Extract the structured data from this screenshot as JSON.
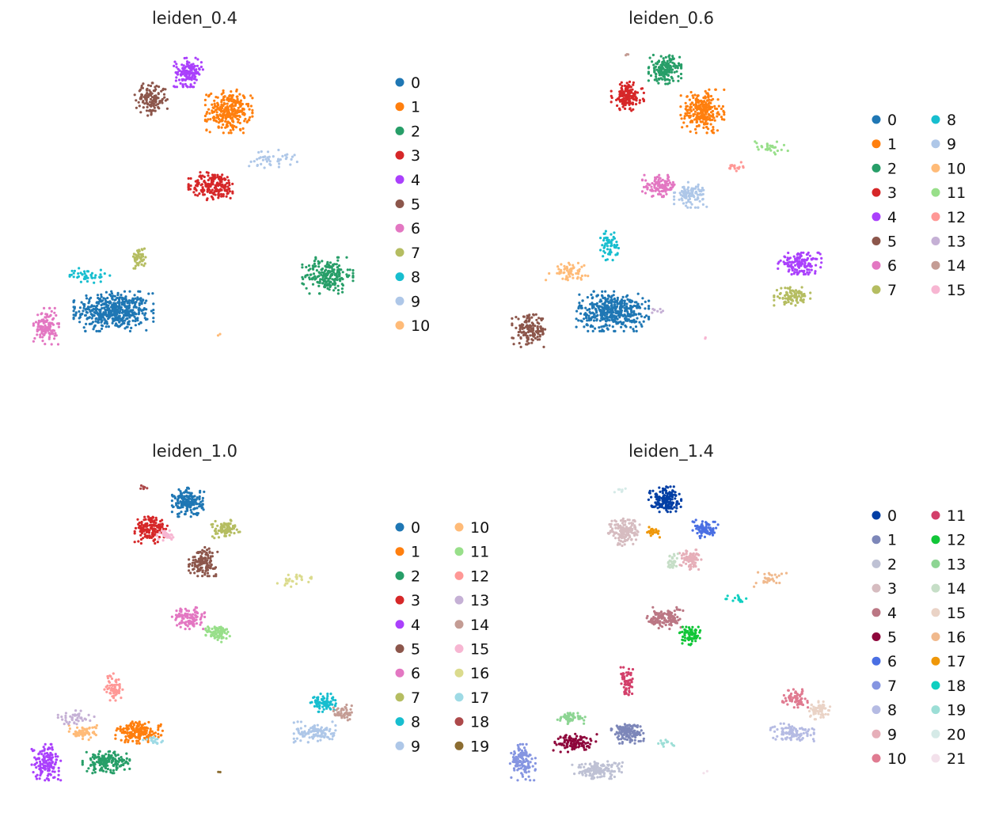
{
  "chart_data": [
    {
      "type": "scatter",
      "title": "leiden_0.4",
      "legend": {
        "placement": "right",
        "columns": 1,
        "entries": [
          {
            "label": "0",
            "color": "#1f77b4"
          },
          {
            "label": "1",
            "color": "#ff7f0e"
          },
          {
            "label": "2",
            "color": "#279e68"
          },
          {
            "label": "3",
            "color": "#d62728"
          },
          {
            "label": "4",
            "color": "#aa40fc"
          },
          {
            "label": "5",
            "color": "#8c564b"
          },
          {
            "label": "6",
            "color": "#e377c2"
          },
          {
            "label": "7",
            "color": "#b5bd61"
          },
          {
            "label": "8",
            "color": "#17becf"
          },
          {
            "label": "9",
            "color": "#aec7e8"
          },
          {
            "label": "10",
            "color": "#ffbb78"
          }
        ]
      },
      "clusters": [
        {
          "label": "0",
          "cx": -0.55,
          "cy": -0.72,
          "rx": 0.22,
          "ry": 0.11,
          "n": 900
        },
        {
          "label": "1",
          "cx": 0.22,
          "cy": 0.62,
          "rx": 0.13,
          "ry": 0.12,
          "n": 500
        },
        {
          "label": "2",
          "cx": 0.88,
          "cy": -0.48,
          "rx": 0.14,
          "ry": 0.1,
          "n": 380
        },
        {
          "label": "3",
          "cx": 0.12,
          "cy": 0.12,
          "rx": 0.14,
          "ry": 0.08,
          "n": 350
        },
        {
          "label": "4",
          "cx": -0.05,
          "cy": 0.88,
          "rx": 0.08,
          "ry": 0.08,
          "n": 260
        },
        {
          "label": "5",
          "cx": -0.3,
          "cy": 0.7,
          "rx": 0.09,
          "ry": 0.09,
          "n": 250
        },
        {
          "label": "6",
          "cx": -1.0,
          "cy": -0.82,
          "rx": 0.07,
          "ry": 0.1,
          "n": 220
        },
        {
          "label": "7",
          "cx": -0.38,
          "cy": -0.36,
          "rx": 0.04,
          "ry": 0.06,
          "n": 90
        },
        {
          "label": "8",
          "cx": -0.72,
          "cy": -0.48,
          "rx": 0.12,
          "ry": 0.04,
          "n": 80
        },
        {
          "label": "9",
          "cx": 0.5,
          "cy": 0.3,
          "rx": 0.15,
          "ry": 0.05,
          "n": 80
        },
        {
          "label": "10",
          "cx": 0.16,
          "cy": -0.88,
          "rx": 0.01,
          "ry": 0.01,
          "n": 4
        }
      ]
    },
    {
      "type": "scatter",
      "title": "leiden_0.6",
      "legend": {
        "placement": "right",
        "columns": 2,
        "entries": [
          {
            "label": "0",
            "color": "#1f77b4"
          },
          {
            "label": "1",
            "color": "#ff7f0e"
          },
          {
            "label": "2",
            "color": "#279e68"
          },
          {
            "label": "3",
            "color": "#d62728"
          },
          {
            "label": "4",
            "color": "#aa40fc"
          },
          {
            "label": "5",
            "color": "#8c564b"
          },
          {
            "label": "6",
            "color": "#e377c2"
          },
          {
            "label": "7",
            "color": "#b5bd61"
          },
          {
            "label": "8",
            "color": "#17becf"
          },
          {
            "label": "9",
            "color": "#aec7e8"
          },
          {
            "label": "10",
            "color": "#ffbb78"
          },
          {
            "label": "11",
            "color": "#98df8a"
          },
          {
            "label": "12",
            "color": "#ff9896"
          },
          {
            "label": "13",
            "color": "#c5b0d5"
          },
          {
            "label": "14",
            "color": "#c49c94"
          },
          {
            "label": "15",
            "color": "#f7b6d2"
          }
        ]
      },
      "clusters": [
        {
          "label": "0",
          "cx": -0.4,
          "cy": -0.72,
          "rx": 0.2,
          "ry": 0.11,
          "n": 800
        },
        {
          "label": "1",
          "cx": 0.2,
          "cy": 0.62,
          "rx": 0.12,
          "ry": 0.12,
          "n": 480
        },
        {
          "label": "2",
          "cx": -0.05,
          "cy": 0.9,
          "rx": 0.09,
          "ry": 0.08,
          "n": 300
        },
        {
          "label": "3",
          "cx": -0.3,
          "cy": 0.72,
          "rx": 0.09,
          "ry": 0.08,
          "n": 280
        },
        {
          "label": "4",
          "cx": 0.85,
          "cy": -0.4,
          "rx": 0.12,
          "ry": 0.06,
          "n": 260
        },
        {
          "label": "5",
          "cx": -0.95,
          "cy": -0.85,
          "rx": 0.1,
          "ry": 0.09,
          "n": 260
        },
        {
          "label": "6",
          "cx": -0.08,
          "cy": 0.12,
          "rx": 0.1,
          "ry": 0.06,
          "n": 200
        },
        {
          "label": "7",
          "cx": 0.8,
          "cy": -0.62,
          "rx": 0.1,
          "ry": 0.05,
          "n": 170
        },
        {
          "label": "8",
          "cx": -0.42,
          "cy": -0.28,
          "rx": 0.05,
          "ry": 0.08,
          "n": 110
        },
        {
          "label": "9",
          "cx": 0.12,
          "cy": 0.06,
          "rx": 0.09,
          "ry": 0.07,
          "n": 180
        },
        {
          "label": "10",
          "cx": -0.7,
          "cy": -0.45,
          "rx": 0.12,
          "ry": 0.05,
          "n": 110
        },
        {
          "label": "11",
          "cx": 0.65,
          "cy": 0.38,
          "rx": 0.1,
          "ry": 0.04,
          "n": 50
        },
        {
          "label": "12",
          "cx": 0.42,
          "cy": 0.25,
          "rx": 0.05,
          "ry": 0.03,
          "n": 30
        },
        {
          "label": "13",
          "cx": -0.1,
          "cy": -0.72,
          "rx": 0.03,
          "ry": 0.02,
          "n": 15
        },
        {
          "label": "14",
          "cx": -0.3,
          "cy": 1.0,
          "rx": 0.01,
          "ry": 0.01,
          "n": 6
        },
        {
          "label": "15",
          "cx": 0.22,
          "cy": -0.9,
          "rx": 0.01,
          "ry": 0.01,
          "n": 3
        }
      ]
    },
    {
      "type": "scatter",
      "title": "leiden_1.0",
      "legend": {
        "placement": "right",
        "columns": 2,
        "entries": [
          {
            "label": "0",
            "color": "#1f77b4"
          },
          {
            "label": "1",
            "color": "#ff7f0e"
          },
          {
            "label": "2",
            "color": "#279e68"
          },
          {
            "label": "3",
            "color": "#d62728"
          },
          {
            "label": "4",
            "color": "#aa40fc"
          },
          {
            "label": "5",
            "color": "#8c564b"
          },
          {
            "label": "6",
            "color": "#e377c2"
          },
          {
            "label": "7",
            "color": "#b5bd61"
          },
          {
            "label": "8",
            "color": "#17becf"
          },
          {
            "label": "9",
            "color": "#aec7e8"
          },
          {
            "label": "10",
            "color": "#ffbb78"
          },
          {
            "label": "11",
            "color": "#98df8a"
          },
          {
            "label": "12",
            "color": "#ff9896"
          },
          {
            "label": "13",
            "color": "#c5b0d5"
          },
          {
            "label": "14",
            "color": "#c49c94"
          },
          {
            "label": "15",
            "color": "#f7b6d2"
          },
          {
            "label": "16",
            "color": "#dbdb8d"
          },
          {
            "label": "17",
            "color": "#9edae5"
          },
          {
            "label": "18",
            "color": "#ad494a"
          },
          {
            "label": "19",
            "color": "#8c6d31"
          }
        ]
      },
      "clusters": [
        {
          "label": "0",
          "cx": -0.05,
          "cy": 0.9,
          "rx": 0.09,
          "ry": 0.08,
          "n": 320
        },
        {
          "label": "1",
          "cx": -0.38,
          "cy": -0.65,
          "rx": 0.13,
          "ry": 0.06,
          "n": 320
        },
        {
          "label": "2",
          "cx": -0.6,
          "cy": -0.85,
          "rx": 0.13,
          "ry": 0.06,
          "n": 300
        },
        {
          "label": "3",
          "cx": -0.3,
          "cy": 0.72,
          "rx": 0.09,
          "ry": 0.08,
          "n": 280
        },
        {
          "label": "4",
          "cx": -1.0,
          "cy": -0.85,
          "rx": 0.08,
          "ry": 0.1,
          "n": 260
        },
        {
          "label": "5",
          "cx": 0.05,
          "cy": 0.5,
          "rx": 0.08,
          "ry": 0.08,
          "n": 250
        },
        {
          "label": "6",
          "cx": -0.05,
          "cy": 0.12,
          "rx": 0.09,
          "ry": 0.06,
          "n": 200
        },
        {
          "label": "7",
          "cx": 0.2,
          "cy": 0.72,
          "rx": 0.08,
          "ry": 0.05,
          "n": 160
        },
        {
          "label": "8",
          "cx": 0.85,
          "cy": -0.45,
          "rx": 0.07,
          "ry": 0.05,
          "n": 140
        },
        {
          "label": "9",
          "cx": 0.8,
          "cy": -0.65,
          "rx": 0.12,
          "ry": 0.06,
          "n": 200
        },
        {
          "label": "10",
          "cx": -0.75,
          "cy": -0.65,
          "rx": 0.08,
          "ry": 0.04,
          "n": 120
        },
        {
          "label": "11",
          "cx": 0.15,
          "cy": 0.02,
          "rx": 0.07,
          "ry": 0.05,
          "n": 150
        },
        {
          "label": "12",
          "cx": -0.55,
          "cy": -0.35,
          "rx": 0.05,
          "ry": 0.08,
          "n": 120
        },
        {
          "label": "13",
          "cx": -0.8,
          "cy": -0.55,
          "rx": 0.1,
          "ry": 0.04,
          "n": 80
        },
        {
          "label": "14",
          "cx": 0.98,
          "cy": -0.52,
          "rx": 0.05,
          "ry": 0.05,
          "n": 80
        },
        {
          "label": "15",
          "cx": -0.2,
          "cy": 0.68,
          "rx": 0.05,
          "ry": 0.03,
          "n": 60
        },
        {
          "label": "16",
          "cx": 0.65,
          "cy": 0.38,
          "rx": 0.1,
          "ry": 0.04,
          "n": 50
        },
        {
          "label": "17",
          "cx": -0.28,
          "cy": -0.7,
          "rx": 0.06,
          "ry": 0.02,
          "n": 30
        },
        {
          "label": "18",
          "cx": -0.35,
          "cy": 1.0,
          "rx": 0.02,
          "ry": 0.01,
          "n": 12
        },
        {
          "label": "19",
          "cx": 0.15,
          "cy": -0.92,
          "rx": 0.01,
          "ry": 0.01,
          "n": 4
        }
      ]
    },
    {
      "type": "scatter",
      "title": "leiden_1.4",
      "legend": {
        "placement": "right",
        "columns": 2,
        "entries": [
          {
            "label": "0",
            "color": "#023fa5"
          },
          {
            "label": "1",
            "color": "#7d87b9"
          },
          {
            "label": "2",
            "color": "#bec1d4"
          },
          {
            "label": "3",
            "color": "#d6bcc0"
          },
          {
            "label": "4",
            "color": "#bb7784"
          },
          {
            "label": "5",
            "color": "#8e063b"
          },
          {
            "label": "6",
            "color": "#4a6fe3"
          },
          {
            "label": "7",
            "color": "#8595e1"
          },
          {
            "label": "8",
            "color": "#b5bbe3"
          },
          {
            "label": "9",
            "color": "#e6afb9"
          },
          {
            "label": "10",
            "color": "#e07b91"
          },
          {
            "label": "11",
            "color": "#d33f6a"
          },
          {
            "label": "12",
            "color": "#11c638"
          },
          {
            "label": "13",
            "color": "#8dd593"
          },
          {
            "label": "14",
            "color": "#c6dec7"
          },
          {
            "label": "15",
            "color": "#ead3c6"
          },
          {
            "label": "16",
            "color": "#f0b98d"
          },
          {
            "label": "17",
            "color": "#ef9708"
          },
          {
            "label": "18",
            "color": "#0fcfc0"
          },
          {
            "label": "19",
            "color": "#9cded6"
          },
          {
            "label": "20",
            "color": "#d5eae7"
          },
          {
            "label": "21",
            "color": "#f3e1eb"
          }
        ]
      },
      "clusters": [
        {
          "label": "0",
          "cx": -0.05,
          "cy": 0.92,
          "rx": 0.09,
          "ry": 0.07,
          "n": 300
        },
        {
          "label": "1",
          "cx": -0.3,
          "cy": -0.65,
          "rx": 0.09,
          "ry": 0.06,
          "n": 250
        },
        {
          "label": "2",
          "cx": -0.5,
          "cy": -0.9,
          "rx": 0.14,
          "ry": 0.05,
          "n": 260
        },
        {
          "label": "3",
          "cx": -0.32,
          "cy": 0.7,
          "rx": 0.09,
          "ry": 0.08,
          "n": 280
        },
        {
          "label": "4",
          "cx": -0.05,
          "cy": 0.12,
          "rx": 0.1,
          "ry": 0.06,
          "n": 220
        },
        {
          "label": "5",
          "cx": -0.65,
          "cy": -0.72,
          "rx": 0.12,
          "ry": 0.05,
          "n": 220
        },
        {
          "label": "6",
          "cx": 0.22,
          "cy": 0.72,
          "rx": 0.07,
          "ry": 0.05,
          "n": 150
        },
        {
          "label": "7",
          "cx": -1.0,
          "cy": -0.85,
          "rx": 0.07,
          "ry": 0.1,
          "n": 220
        },
        {
          "label": "8",
          "cx": 0.8,
          "cy": -0.65,
          "rx": 0.12,
          "ry": 0.05,
          "n": 180
        },
        {
          "label": "9",
          "cx": 0.12,
          "cy": 0.52,
          "rx": 0.06,
          "ry": 0.06,
          "n": 130
        },
        {
          "label": "10",
          "cx": 0.82,
          "cy": -0.42,
          "rx": 0.07,
          "ry": 0.05,
          "n": 130
        },
        {
          "label": "11",
          "cx": -0.3,
          "cy": -0.32,
          "rx": 0.04,
          "ry": 0.09,
          "n": 110
        },
        {
          "label": "12",
          "cx": 0.12,
          "cy": 0.0,
          "rx": 0.06,
          "ry": 0.05,
          "n": 140
        },
        {
          "label": "13",
          "cx": -0.68,
          "cy": -0.55,
          "rx": 0.08,
          "ry": 0.04,
          "n": 90
        },
        {
          "label": "14",
          "cx": 0.0,
          "cy": 0.5,
          "rx": 0.03,
          "ry": 0.05,
          "n": 60
        },
        {
          "label": "15",
          "cx": 0.98,
          "cy": -0.5,
          "rx": 0.06,
          "ry": 0.05,
          "n": 110
        },
        {
          "label": "16",
          "cx": 0.65,
          "cy": 0.38,
          "rx": 0.1,
          "ry": 0.04,
          "n": 50
        },
        {
          "label": "17",
          "cx": -0.12,
          "cy": 0.7,
          "rx": 0.04,
          "ry": 0.03,
          "n": 40
        },
        {
          "label": "18",
          "cx": 0.42,
          "cy": 0.25,
          "rx": 0.06,
          "ry": 0.03,
          "n": 30
        },
        {
          "label": "19",
          "cx": -0.05,
          "cy": -0.72,
          "rx": 0.05,
          "ry": 0.02,
          "n": 25
        },
        {
          "label": "20",
          "cx": -0.35,
          "cy": 0.98,
          "rx": 0.03,
          "ry": 0.02,
          "n": 15
        },
        {
          "label": "21",
          "cx": 0.22,
          "cy": -0.92,
          "rx": 0.01,
          "ry": 0.01,
          "n": 3
        }
      ]
    }
  ]
}
